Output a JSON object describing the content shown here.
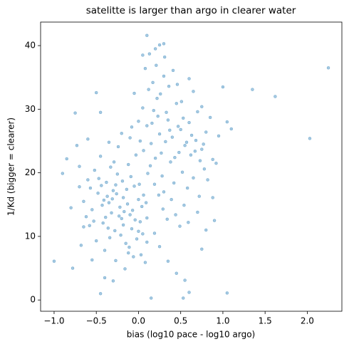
{
  "chart_data": {
    "type": "scatter",
    "title": "satelitte is larger than argo in clearer water",
    "x_label": "bias (log10 pace - log10 argo)",
    "y_label": "1/Kd (bigger = clearer)",
    "color": "#1f77b4",
    "xlim": [
      -1.16,
      2.41
    ],
    "ylim": [
      -1.77,
      43.7
    ],
    "xticks": [
      {
        "value": -1.0,
        "label": "−1.0"
      },
      {
        "value": -0.5,
        "label": "−0.5"
      },
      {
        "value": 0.0,
        "label": "0.0"
      },
      0.5,
      {
        "value": 1.0,
        "label": "1.0"
      },
      1.5,
      {
        "value": 2.0,
        "label": "2.0"
      }
    ],
    "yticks": [
      0,
      10,
      20,
      30,
      40
    ],
    "x": [
      -1.0,
      -0.9,
      -0.78,
      -0.75,
      -0.45,
      -0.5,
      -0.45,
      0.15,
      0.53,
      0.6,
      1.05,
      2.25,
      2.03,
      1.62,
      1.35,
      1.0,
      0.1,
      0.3,
      0.88,
      0.9,
      1.1,
      1.05,
      0.75,
      -0.65,
      -0.7,
      -0.55,
      -0.48,
      -0.42,
      -0.38,
      -0.35,
      -0.32,
      -0.3,
      -0.28,
      -0.25,
      -0.22,
      -0.2,
      -0.18,
      -0.15,
      -0.12,
      -0.1,
      -0.08,
      -0.05,
      -0.02,
      0.0,
      0.03,
      -0.6,
      -0.58,
      -0.52,
      -0.5,
      -0.45,
      -0.4,
      -0.37,
      -0.33,
      -0.27,
      -0.24,
      -0.19,
      -0.16,
      -0.13,
      -0.09,
      -0.06,
      -0.03,
      0.02,
      0.05,
      -0.43,
      -0.36,
      -0.31,
      -0.26,
      -0.21,
      -0.17,
      -0.14,
      -0.11,
      -0.07,
      -0.04,
      0.01,
      0.04,
      -0.65,
      -0.62,
      -0.57,
      -0.53,
      -0.47,
      -0.41,
      -0.34,
      -0.29,
      -0.23,
      -0.18,
      -0.7,
      -0.73,
      -0.68,
      -0.8,
      -0.85,
      -0.6,
      -0.4,
      -0.3,
      -0.2,
      0.06,
      0.08,
      0.1,
      -0.55,
      -0.35,
      -0.1,
      0.0,
      -0.44,
      -0.39,
      -0.27,
      -0.12,
      0.05,
      0.1,
      0.12,
      0.15,
      0.18,
      0.2,
      0.22,
      0.25,
      0.28,
      0.3,
      0.32,
      0.35,
      0.38,
      0.4,
      0.42,
      0.45,
      0.48,
      0.5,
      0.52,
      0.55,
      0.58,
      0.6,
      0.62,
      0.65,
      0.68,
      0.7,
      0.72,
      0.75,
      0.78,
      0.8,
      0.08,
      0.13,
      0.17,
      0.21,
      0.26,
      0.31,
      0.36,
      0.41,
      0.46,
      0.51,
      0.14,
      0.19,
      0.24,
      0.29,
      0.34,
      0.39,
      0.44,
      0.49,
      0.54,
      0.59,
      0.06,
      0.11,
      0.16,
      0.23,
      0.27,
      0.33,
      0.37,
      0.43,
      0.47,
      0.53,
      0.57,
      0.63,
      0.67,
      0.73,
      0.77,
      0.82,
      0.85,
      0.88,
      0.92,
      0.95,
      0.0,
      -0.05,
      0.02,
      -0.08,
      0.09,
      0.19,
      0.25,
      0.35,
      0.45,
      0.55,
      0.2,
      0.25,
      0.05,
      0.65,
      0.75,
      0.6,
      0.7,
      0.8,
      0.1,
      0.3
    ],
    "values": [
      6.1,
      19.9,
      5.0,
      29.4,
      1.0,
      32.6,
      29.5,
      0.3,
      0.3,
      1.2,
      1.1,
      36.5,
      25.4,
      32.0,
      33.1,
      33.5,
      41.6,
      40.3,
      22.1,
      12.5,
      26.9,
      28.0,
      8.0,
      11.5,
      21.0,
      14.2,
      16.8,
      12.1,
      18.5,
      15.3,
      13.7,
      17.2,
      10.9,
      19.8,
      14.6,
      12.8,
      16.1,
      8.9,
      21.3,
      13.4,
      11.2,
      17.9,
      9.6,
      15.8,
      7.1,
      18.9,
      11.7,
      20.4,
      9.3,
      22.6,
      7.8,
      16.3,
      20.9,
      6.2,
      24.1,
      18.7,
      4.9,
      15.1,
      19.4,
      6.8,
      22.8,
      12.3,
      10.4,
      14.9,
      11.3,
      15.9,
      16.7,
      10.2,
      13.9,
      17.4,
      8.3,
      14.1,
      12.6,
      18.2,
      14.7,
      15.5,
      13.1,
      17.6,
      12.4,
      19.1,
      15.7,
      9.8,
      21.7,
      13.2,
      11.8,
      17.8,
      24.3,
      8.6,
      14.5,
      22.2,
      25.3,
      3.5,
      3.0,
      26.2,
      16.5,
      5.9,
      9.1,
      6.3,
      24.8,
      25.5,
      10.8,
      18.0,
      13.0,
      18.1,
      7.4,
      30.2,
      27.4,
      33.1,
      24.6,
      29.8,
      22.3,
      31.7,
      26.1,
      19.5,
      35.2,
      24.9,
      28.3,
      21.7,
      25.6,
      18.4,
      30.9,
      23.2,
      26.8,
      20.1,
      24.3,
      17.6,
      27.9,
      22.8,
      19.2,
      25.1,
      29.6,
      16.3,
      23.7,
      20.6,
      26.4,
      36.4,
      38.7,
      34.2,
      36.9,
      32.4,
      38.2,
      33.6,
      36.1,
      33.9,
      31.2,
      21.1,
      18.2,
      16.5,
      14.3,
      12.7,
      15.8,
      13.4,
      11.6,
      14.9,
      12.2,
      23.5,
      19.9,
      27.8,
      28.9,
      23.1,
      29.5,
      26.7,
      22.4,
      27.3,
      28.6,
      24.8,
      25.9,
      23.4,
      21.9,
      24.5,
      18.9,
      28.7,
      16.1,
      21.5,
      25.8,
      28.1,
      32.5,
      25.0,
      27.2,
      15.3,
      10.5,
      8.4,
      6.1,
      4.2,
      3.1,
      39.5,
      40.1,
      38.5,
      32.8,
      30.4,
      34.8,
      13.8,
      11.0,
      12.9,
      17.0
    ]
  }
}
